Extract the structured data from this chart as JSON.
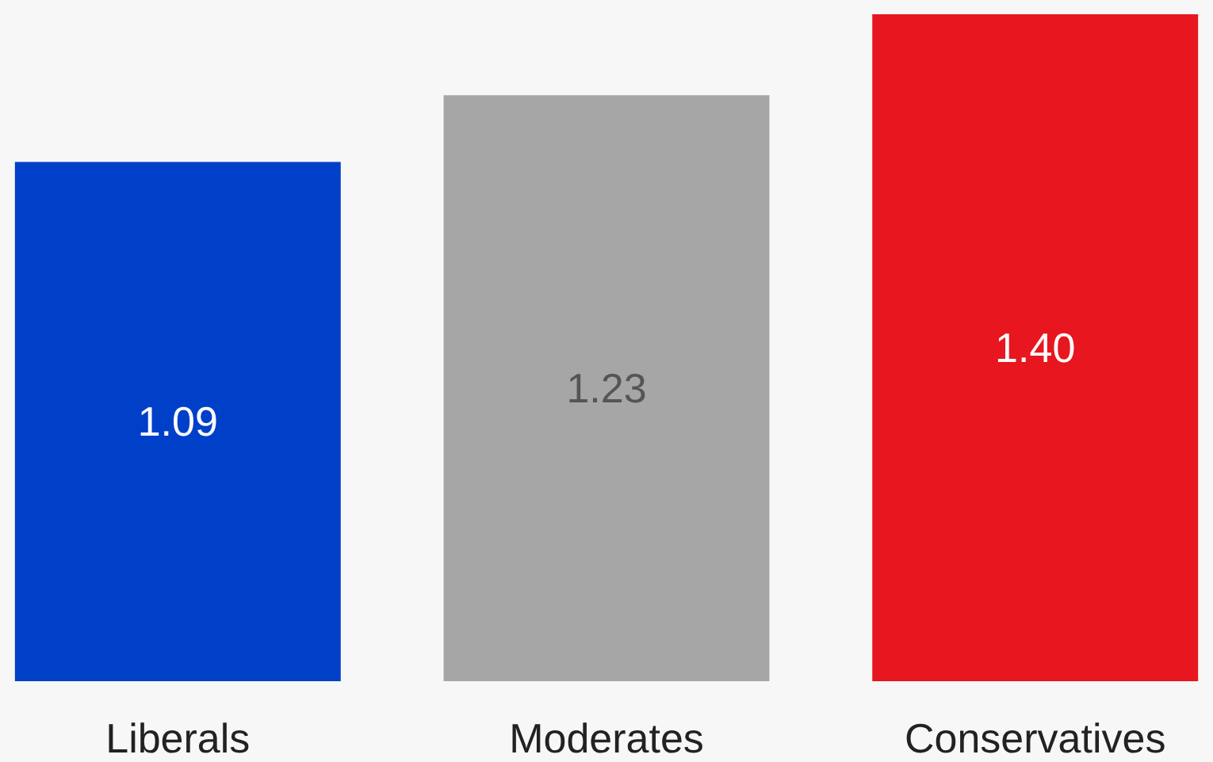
{
  "chart_data": {
    "type": "bar",
    "categories": [
      "Liberals",
      "Moderates",
      "Conservatives"
    ],
    "values": [
      1.09,
      1.23,
      1.4
    ],
    "value_labels": [
      "1.09",
      "1.23",
      "1.40"
    ],
    "colors": [
      "#0040c8",
      "#a6a6a6",
      "#e8161e"
    ],
    "grid": false
  }
}
